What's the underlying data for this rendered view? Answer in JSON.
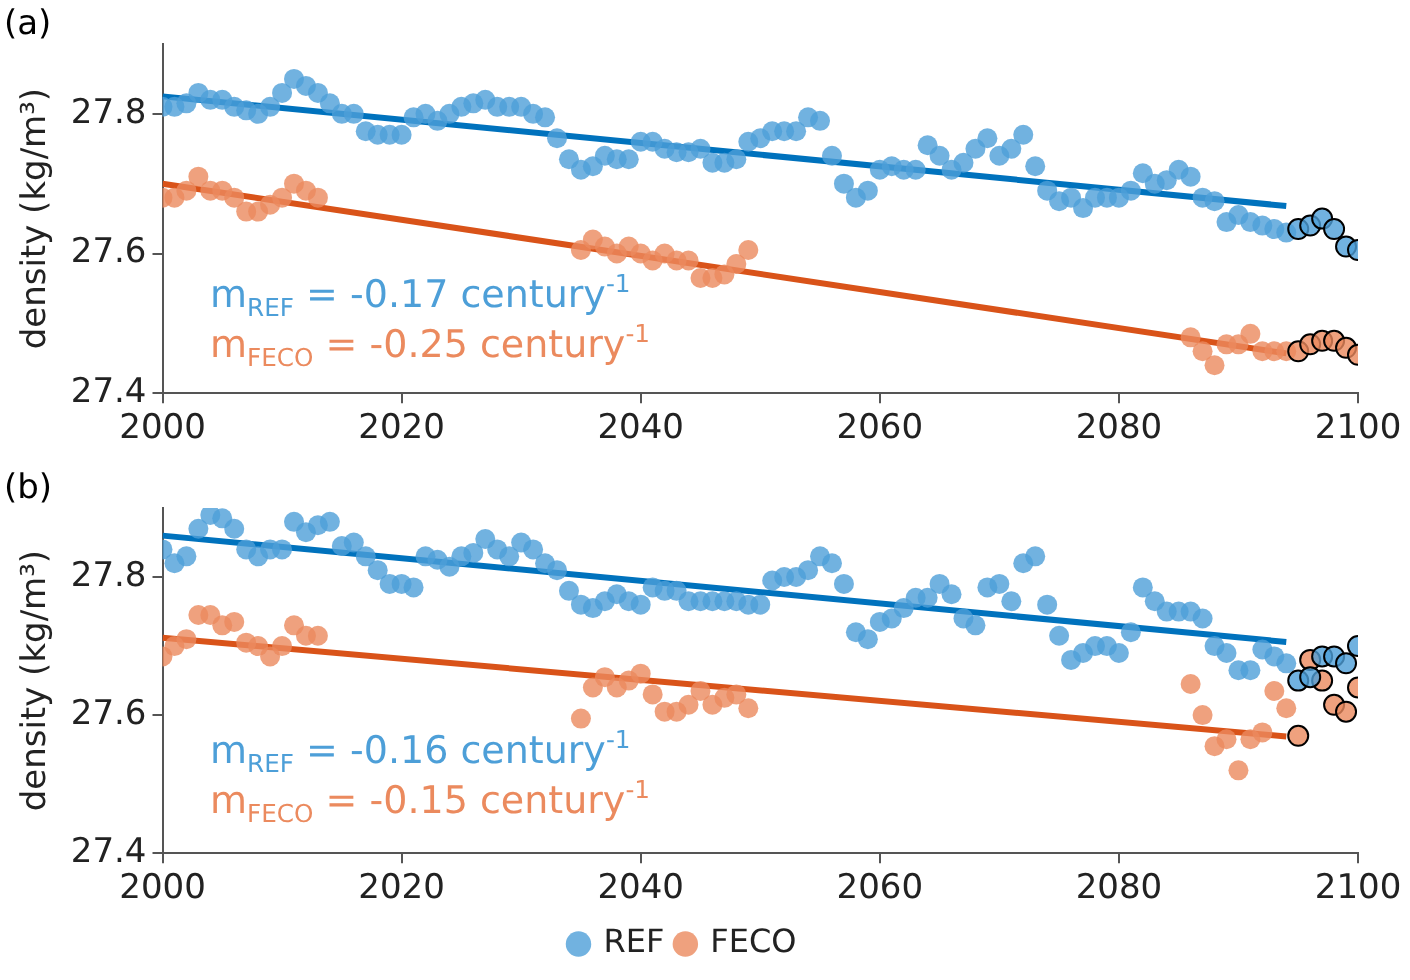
{
  "chart_data": [
    {
      "type": "scatter",
      "ylabel": "density (kg/m³)",
      "xlim": [
        2000,
        2100
      ],
      "xticks": [
        2000,
        2020,
        2040,
        2060,
        2080,
        2100
      ],
      "ylim": [
        27.4,
        27.9
      ],
      "yticks": [
        27.4,
        27.6,
        27.8
      ],
      "grid": false,
      "legend": false,
      "marker": "circle",
      "annotations": [
        "(a)",
        "m$_{REF}$ = -0.17 century$^{-1}$",
        "m$_{FECO}$ = -0.25 century$^{-1}$"
      ],
      "series": [
        {
          "color": "#4d9fd8",
          "x": [
            2000,
            2001,
            2002,
            2003,
            2004,
            2005,
            2006,
            2007,
            2008,
            2009,
            2010,
            2011,
            2012,
            2013,
            2014,
            2015,
            2016,
            2017,
            2018,
            2019,
            2020,
            2021,
            2022,
            2023,
            2024,
            2025,
            2026,
            2027,
            2028,
            2029,
            2030,
            2031,
            2032,
            2033,
            2034,
            2035,
            2036,
            2037,
            2038,
            2039,
            2040,
            2041,
            2042,
            2043,
            2044,
            2045,
            2046,
            2047,
            2048,
            2049,
            2050,
            2051,
            2052,
            2053,
            2054,
            2055,
            2056,
            2057,
            2058,
            2059,
            2060,
            2061,
            2062,
            2063,
            2064,
            2065,
            2066,
            2067,
            2068,
            2069,
            2070,
            2071,
            2072,
            2073,
            2074,
            2075,
            2076,
            2077,
            2078,
            2079,
            2080,
            2081,
            2082,
            2083,
            2084,
            2085,
            2086,
            2087,
            2088,
            2089,
            2090,
            2091,
            2092,
            2093,
            2094
          ],
          "values": [
            27.81,
            27.81,
            27.815,
            27.83,
            27.82,
            27.82,
            27.81,
            27.805,
            27.8,
            27.81,
            27.83,
            27.85,
            27.84,
            27.83,
            27.815,
            27.8,
            27.8,
            27.775,
            27.77,
            27.77,
            27.77,
            27.795,
            27.8,
            27.79,
            27.8,
            27.81,
            27.815,
            27.82,
            27.81,
            27.81,
            27.81,
            27.8,
            27.795,
            27.765,
            27.735,
            27.72,
            27.725,
            27.74,
            27.735,
            27.735,
            27.76,
            27.76,
            27.75,
            27.745,
            27.745,
            27.75,
            27.73,
            27.73,
            27.735,
            27.76,
            27.765,
            27.775,
            27.775,
            27.775,
            27.795,
            27.79,
            27.74,
            27.7,
            27.68,
            27.69,
            27.72,
            27.725,
            27.72,
            27.72,
            27.755,
            27.74,
            27.72,
            27.73,
            27.75,
            27.765,
            27.74,
            27.75,
            27.77,
            27.725,
            27.69,
            27.675,
            27.68,
            27.665,
            27.68,
            27.68,
            27.68,
            27.69,
            27.715,
            27.7,
            27.705,
            27.72,
            27.71,
            27.68,
            27.675,
            27.645,
            27.655,
            27.645,
            27.64,
            27.635,
            27.63
          ]
        },
        {
          "color": "#eb8a5e",
          "x": [
            2000,
            2001,
            2002,
            2003,
            2004,
            2005,
            2006,
            2007,
            2008,
            2009,
            2010,
            2011,
            2012,
            2013,
            2035,
            2036,
            2037,
            2038,
            2039,
            2040,
            2041,
            2042,
            2043,
            2044,
            2045,
            2046,
            2047,
            2048,
            2049,
            2086,
            2087,
            2088,
            2089,
            2090,
            2091,
            2092,
            2093,
            2094
          ],
          "values": [
            27.68,
            27.68,
            27.69,
            27.71,
            27.69,
            27.69,
            27.68,
            27.66,
            27.66,
            27.67,
            27.68,
            27.7,
            27.69,
            27.68,
            27.605,
            27.62,
            27.61,
            27.6,
            27.61,
            27.6,
            27.59,
            27.6,
            27.59,
            27.59,
            27.565,
            27.565,
            27.57,
            27.585,
            27.605,
            27.48,
            27.46,
            27.44,
            27.47,
            27.47,
            27.485,
            27.46,
            27.46,
            27.46
          ]
        },
        {
          "color": "#4d9fd8",
          "x": [
            2095,
            2096,
            2097,
            2098,
            2099,
            2100
          ],
          "values": [
            27.635,
            27.64,
            27.65,
            27.635,
            27.61,
            27.605
          ]
        },
        {
          "color": "#eb8a5e",
          "x": [
            2095,
            2096,
            2097,
            2098,
            2099,
            2100
          ],
          "values": [
            27.46,
            27.47,
            27.475,
            27.475,
            27.465,
            27.455
          ]
        },
        {
          "type": "line",
          "marker": "none",
          "color": "#0072bd",
          "x": [
            2000,
            2094
          ],
          "values": [
            27.825,
            27.668
          ]
        },
        {
          "type": "line",
          "marker": "none",
          "color": "#d95319",
          "x": [
            2000,
            2094
          ],
          "values": [
            27.7,
            27.457
          ]
        }
      ]
    },
    {
      "type": "scatter",
      "ylabel": "density (kg/m³)",
      "xlim": [
        2000,
        2100
      ],
      "xticks": [
        2000,
        2020,
        2040,
        2060,
        2080,
        2100
      ],
      "ylim": [
        27.4,
        27.9
      ],
      "yticks": [
        27.4,
        27.6,
        27.8
      ],
      "grid": false,
      "legend": "bottom",
      "marker": "circle",
      "annotations": [
        "(b)",
        "m$_{REF}$ = -0.16 century$^{-1}$",
        "m$_{FECO}$ = -0.15 century$^{-1}$"
      ],
      "series": [
        {
          "name": "REF",
          "color": "#4d9fd8",
          "x": [
            2000,
            2001,
            2002,
            2003,
            2004,
            2005,
            2006,
            2007,
            2008,
            2009,
            2010,
            2011,
            2012,
            2013,
            2014,
            2015,
            2016,
            2017,
            2018,
            2019,
            2020,
            2021,
            2022,
            2023,
            2024,
            2025,
            2026,
            2027,
            2028,
            2029,
            2030,
            2031,
            2032,
            2033,
            2034,
            2035,
            2036,
            2037,
            2038,
            2039,
            2040,
            2041,
            2042,
            2043,
            2044,
            2045,
            2046,
            2047,
            2048,
            2049,
            2050,
            2051,
            2052,
            2053,
            2054,
            2055,
            2056,
            2057,
            2058,
            2059,
            2060,
            2061,
            2062,
            2063,
            2064,
            2065,
            2066,
            2067,
            2068,
            2069,
            2070,
            2071,
            2072,
            2073,
            2074,
            2075,
            2076,
            2077,
            2078,
            2079,
            2080,
            2081,
            2082,
            2083,
            2084,
            2085,
            2086,
            2087,
            2088,
            2089,
            2090,
            2091,
            2092,
            2093,
            2094
          ],
          "values": [
            27.84,
            27.82,
            27.83,
            27.87,
            27.89,
            27.885,
            27.87,
            27.84,
            27.83,
            27.84,
            27.84,
            27.88,
            27.865,
            27.875,
            27.88,
            27.845,
            27.85,
            27.83,
            27.81,
            27.79,
            27.79,
            27.785,
            27.83,
            27.825,
            27.815,
            27.83,
            27.835,
            27.855,
            27.84,
            27.83,
            27.85,
            27.84,
            27.82,
            27.81,
            27.78,
            27.76,
            27.755,
            27.765,
            27.775,
            27.765,
            27.76,
            27.785,
            27.78,
            27.78,
            27.765,
            27.765,
            27.765,
            27.765,
            27.765,
            27.76,
            27.76,
            27.795,
            27.8,
            27.8,
            27.81,
            27.83,
            27.82,
            27.79,
            27.72,
            27.71,
            27.735,
            27.74,
            27.755,
            27.77,
            27.77,
            27.79,
            27.775,
            27.74,
            27.73,
            27.785,
            27.79,
            27.765,
            27.82,
            27.83,
            27.76,
            27.715,
            27.68,
            27.69,
            27.7,
            27.7,
            27.69,
            27.72,
            27.785,
            27.765,
            27.75,
            27.75,
            27.75,
            27.74,
            27.7,
            27.69,
            27.665,
            27.665,
            27.695,
            27.685,
            27.675
          ]
        },
        {
          "name": "FECO",
          "color": "#eb8a5e",
          "x": [
            2000,
            2001,
            2002,
            2003,
            2004,
            2005,
            2006,
            2007,
            2008,
            2009,
            2010,
            2011,
            2012,
            2013,
            2035,
            2036,
            2037,
            2038,
            2039,
            2040,
            2041,
            2042,
            2043,
            2044,
            2045,
            2046,
            2047,
            2048,
            2049,
            2086,
            2087,
            2088,
            2089,
            2090,
            2091,
            2092,
            2093,
            2094
          ],
          "values": [
            27.685,
            27.7,
            27.71,
            27.745,
            27.745,
            27.73,
            27.735,
            27.705,
            27.7,
            27.685,
            27.7,
            27.73,
            27.715,
            27.715,
            27.595,
            27.64,
            27.655,
            27.64,
            27.65,
            27.66,
            27.63,
            27.605,
            27.605,
            27.615,
            27.635,
            27.615,
            27.625,
            27.63,
            27.61,
            27.645,
            27.6,
            27.555,
            27.565,
            27.52,
            27.565,
            27.575,
            27.635,
            27.61
          ]
        },
        {
          "color": "#4d9fd8",
          "x": [
            2095,
            2096,
            2097,
            2098,
            2099,
            2100
          ],
          "values": [
            27.65,
            27.655,
            27.685,
            27.685,
            27.675,
            27.7
          ]
        },
        {
          "color": "#eb8a5e",
          "x": [
            2095,
            2096,
            2097,
            2098,
            2099,
            2100
          ],
          "values": [
            27.57,
            27.68,
            27.65,
            27.615,
            27.605,
            27.64
          ]
        },
        {
          "type": "line",
          "marker": "none",
          "color": "#0072bd",
          "x": [
            2000,
            2094
          ],
          "values": [
            27.86,
            27.706
          ]
        },
        {
          "type": "line",
          "marker": "none",
          "color": "#d95319",
          "x": [
            2000,
            2094
          ],
          "values": [
            27.712,
            27.569
          ]
        }
      ]
    }
  ]
}
